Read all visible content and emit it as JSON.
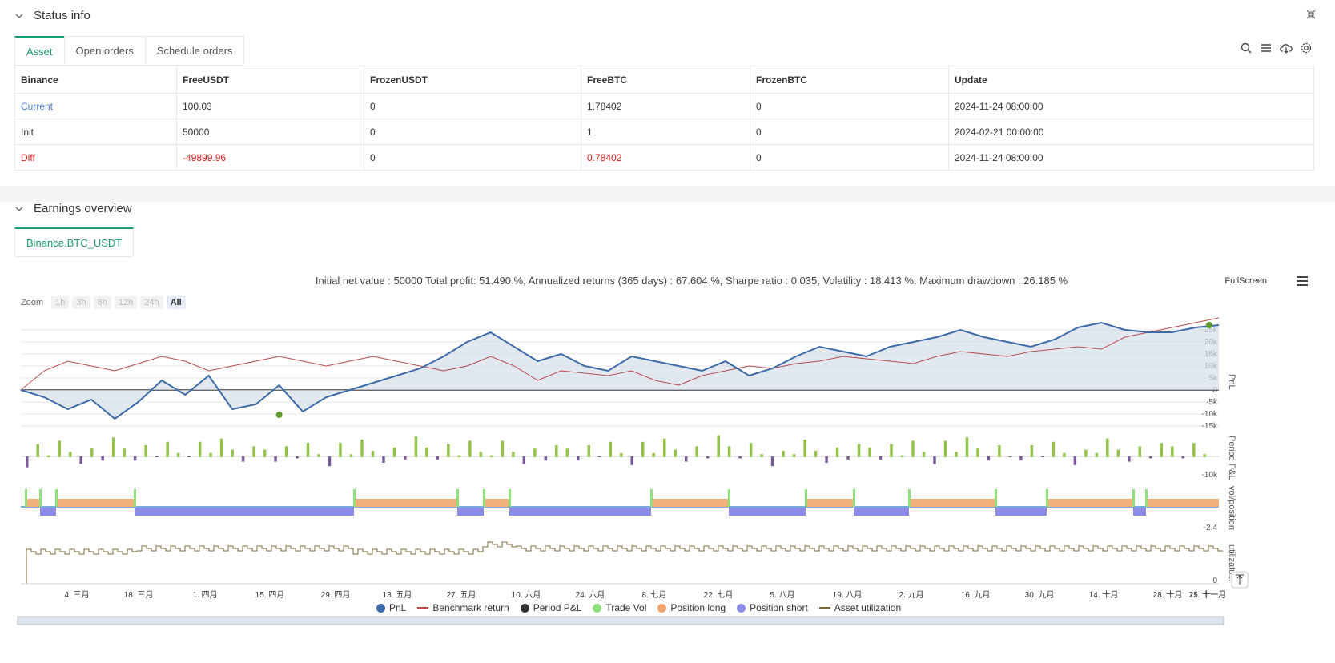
{
  "status": {
    "title": "Status info",
    "tabs": [
      "Asset",
      "Open orders",
      "Schedule orders"
    ],
    "table": {
      "headers": [
        "Binance",
        "FreeUSDT",
        "FrozenUSDT",
        "FreeBTC",
        "FrozenBTC",
        "Update"
      ],
      "rows": [
        [
          "Current",
          "100.03",
          "0",
          "1.78402",
          "0",
          "2024-11-24 08:00:00"
        ],
        [
          "Init",
          "50000",
          "0",
          "1",
          "0",
          "2024-02-21 00:00:00"
        ],
        [
          "Diff",
          "-49899.96",
          "0",
          "0.78402",
          "0",
          "2024-11-24 08:00:00"
        ]
      ]
    },
    "icons": [
      "search-icon",
      "list-icon",
      "cloud-download-icon",
      "gear-icon"
    ]
  },
  "earnings": {
    "title": "Earnings overview",
    "tab": "Binance.BTC_USDT",
    "summary": "Initial net value : 50000 Total profit: 51.490 %, Annualized returns (365 days) : 67.604 %, Sharpe ratio : 0.035, Volatility : 18.413 %, Maximum drawdown : 26.185 %",
    "zoom_label": "Zoom",
    "zoom_buttons": [
      "1h",
      "3h",
      "8h",
      "12h",
      "24h",
      "All"
    ],
    "fullscreen": "FullScreen"
  },
  "chart_data": {
    "type": "line",
    "x_ticks": [
      "4. 三月",
      "18. 三月",
      "1. 四月",
      "15. 四月",
      "29. 四月",
      "13. 五月",
      "27. 五月",
      "10. 六月",
      "24. 六月",
      "8. 七月",
      "22. 七月",
      "5. 八月",
      "19. 八月",
      "2. 九月",
      "16. 九月",
      "30. 九月",
      "14. 十月",
      "28. 十月",
      "11. 十一月",
      "25. 十一月"
    ],
    "panes": [
      {
        "name": "PnL",
        "y_ticks": [
          "25k",
          "20k",
          "15k",
          "10k",
          "5k",
          "0",
          "-5k",
          "-10k",
          "-15k"
        ]
      },
      {
        "name": "Period P&L",
        "y_ticks": [
          "-10k"
        ]
      },
      {
        "name": "vol/position",
        "y_ticks": [
          "-2.4"
        ]
      },
      {
        "name": "utilizatu...",
        "y_ticks": [
          "0"
        ]
      }
    ],
    "series": [
      {
        "name": "PnL",
        "color": "#3d6aa8",
        "values": [
          0,
          -3,
          -8,
          -4,
          -12,
          -5,
          4,
          -2,
          6,
          -8,
          -6,
          2,
          -9,
          -3,
          0,
          3,
          6,
          9,
          14,
          20,
          24,
          18,
          12,
          15,
          10,
          8,
          14,
          12,
          10,
          8,
          12,
          6,
          9,
          14,
          18,
          16,
          14,
          18,
          20,
          22,
          25,
          22,
          20,
          18,
          21,
          26,
          28,
          25,
          24,
          24,
          26,
          27
        ]
      },
      {
        "name": "Benchmark return",
        "color": "#b84a4a",
        "values": [
          0,
          8,
          12,
          10,
          8,
          11,
          14,
          12,
          8,
          10,
          12,
          14,
          12,
          10,
          12,
          14,
          12,
          10,
          8,
          10,
          14,
          10,
          4,
          8,
          7,
          6,
          8,
          4,
          2,
          6,
          8,
          10,
          9,
          11,
          12,
          14,
          13,
          12,
          11,
          14,
          16,
          15,
          14,
          16,
          17,
          18,
          17,
          22,
          24,
          26,
          28,
          30
        ]
      }
    ],
    "legend": [
      {
        "label": "PnL",
        "color": "#3d6aa8",
        "shape": "dot"
      },
      {
        "label": "Benchmark return",
        "color": "#b84a4a",
        "shape": "line"
      },
      {
        "label": "Period P&L",
        "color": "#333333",
        "shape": "dot"
      },
      {
        "label": "Trade Vol",
        "color": "#8de07a",
        "shape": "dot"
      },
      {
        "label": "Position long",
        "color": "#f4a66a",
        "shape": "dot"
      },
      {
        "label": "Position short",
        "color": "#8b8be8",
        "shape": "dot"
      },
      {
        "label": "Asset utilization",
        "color": "#7a6a3a",
        "shape": "line"
      }
    ]
  }
}
